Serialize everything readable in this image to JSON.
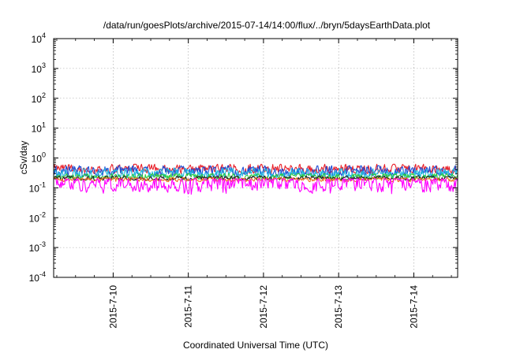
{
  "chart_data": {
    "type": "line",
    "title": "/data/run/goesPlots/archive/2015-07-14/14:00/flux/../bryn/5daysEarthData.plot",
    "xlabel": "Coordinated Universal Time (UTC)",
    "ylabel": "cSv/day",
    "yscale": "log",
    "ylim": [
      0.0001,
      10000
    ],
    "xlim": [
      "2015-07-09T05:00",
      "2015-07-14T14:00"
    ],
    "y_ticks": [
      {
        "value": 0.0001,
        "base": "10",
        "exp": "-4"
      },
      {
        "value": 0.001,
        "base": "10",
        "exp": "-3"
      },
      {
        "value": 0.01,
        "base": "10",
        "exp": "-2"
      },
      {
        "value": 0.1,
        "base": "10",
        "exp": "-1"
      },
      {
        "value": 1,
        "base": "10",
        "exp": "0"
      },
      {
        "value": 10,
        "base": "10",
        "exp": "1"
      },
      {
        "value": 100,
        "base": "10",
        "exp": "2"
      },
      {
        "value": 1000,
        "base": "10",
        "exp": "3"
      },
      {
        "value": 10000,
        "base": "10",
        "exp": "4"
      }
    ],
    "x_ticks": [
      {
        "date": "2015-07-10T00:00",
        "label": "2015-7-10"
      },
      {
        "date": "2015-07-11T00:00",
        "label": "2015-7-11"
      },
      {
        "date": "2015-07-12T00:00",
        "label": "2015-7-12"
      },
      {
        "date": "2015-07-13T00:00",
        "label": "2015-7-13"
      },
      {
        "date": "2015-07-14T00:00",
        "label": "2015-7-14"
      }
    ],
    "grid": true,
    "series": [
      {
        "color": "#e8202a",
        "typical_value": 0.42,
        "low": 0.3,
        "high": 0.62
      },
      {
        "color": "#1e4fd6",
        "typical_value": 0.36,
        "low": 0.25,
        "high": 0.55
      },
      {
        "color": "#22b8e0",
        "typical_value": 0.3,
        "low": 0.22,
        "high": 0.45
      },
      {
        "color": "#2ecc40",
        "typical_value": 0.24,
        "low": 0.19,
        "high": 0.3
      },
      {
        "color": "#222222",
        "typical_value": 0.21,
        "low": 0.18,
        "high": 0.25
      },
      {
        "color": "#f07020",
        "typical_value": 0.19,
        "low": 0.16,
        "high": 0.22
      },
      {
        "color": "#ff00ff",
        "typical_value": 0.15,
        "low": 0.06,
        "high": 0.2
      }
    ]
  }
}
